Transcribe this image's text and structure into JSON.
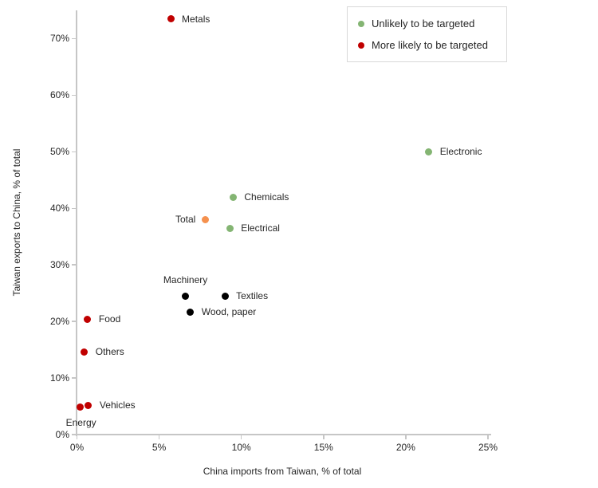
{
  "chart_data": {
    "type": "scatter",
    "title": "",
    "xlabel": "China imports from Taiwan, % of total",
    "ylabel": "Taiwan exports to China, % of total",
    "xlim": [
      0,
      25
    ],
    "ylim": [
      0,
      75
    ],
    "grid": false,
    "x_ticks": {
      "values": [
        0,
        5,
        10,
        15,
        20,
        25
      ],
      "labels": [
        "0%",
        "5%",
        "10%",
        "15%",
        "20%",
        "25%"
      ]
    },
    "y_ticks": {
      "values": [
        0,
        10,
        20,
        30,
        40,
        50,
        60,
        70
      ],
      "labels": [
        "0%",
        "10%",
        "20%",
        "30%",
        "40%",
        "50%",
        "60%",
        "70%"
      ]
    },
    "legend": {
      "position": "top-right",
      "items": [
        {
          "label": "Unlikely to be targeted",
          "color": "#84b573"
        },
        {
          "label": "More likely to be targeted",
          "color": "#c00000"
        }
      ]
    },
    "points": [
      {
        "label": "Metals",
        "x": 5.7,
        "y": 73.5,
        "color": "#c00000",
        "label_pos": "right"
      },
      {
        "label": "Electronic",
        "x": 21.4,
        "y": 50,
        "color": "#84b573",
        "label_pos": "right"
      },
      {
        "label": "Chemicals",
        "x": 9.5,
        "y": 42,
        "color": "#84b573",
        "label_pos": "right"
      },
      {
        "label": "Total",
        "x": 7.8,
        "y": 38,
        "color": "#f5914e",
        "label_pos": "left"
      },
      {
        "label": "Electrical",
        "x": 9.3,
        "y": 36.5,
        "color": "#84b573",
        "label_pos": "right"
      },
      {
        "label": "Machinery",
        "x": 6.6,
        "y": 24.5,
        "color": "#000000",
        "label_pos": "above"
      },
      {
        "label": "Textiles",
        "x": 9.0,
        "y": 24.5,
        "color": "#000000",
        "label_pos": "right"
      },
      {
        "label": "Wood, paper",
        "x": 6.9,
        "y": 21.7,
        "color": "#000000",
        "label_pos": "right"
      },
      {
        "label": "Food",
        "x": 0.65,
        "y": 20.4,
        "color": "#c00000",
        "label_pos": "right"
      },
      {
        "label": "Others",
        "x": 0.45,
        "y": 14.6,
        "color": "#c00000",
        "label_pos": "right"
      },
      {
        "label": "Vehicles",
        "x": 0.7,
        "y": 5.2,
        "color": "#c00000",
        "label_pos": "right"
      },
      {
        "label": "Energy",
        "x": 0.2,
        "y": 4.9,
        "color": "#c00000",
        "label_pos": "below"
      }
    ]
  }
}
